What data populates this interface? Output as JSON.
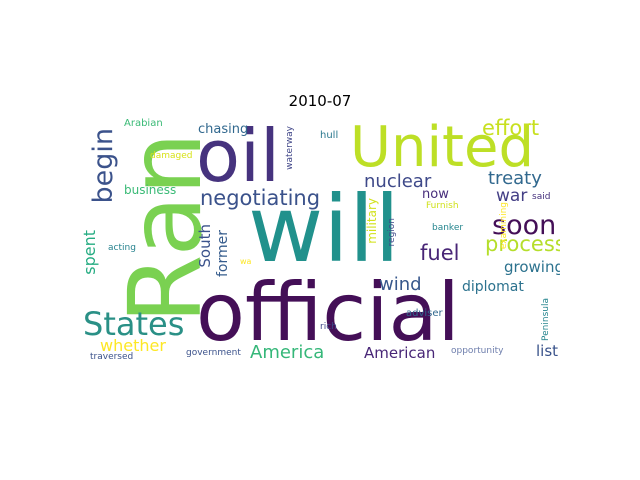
{
  "title": "2010-07",
  "words": [
    {
      "text": "will",
      "color": "#21918c"
    },
    {
      "text": "official",
      "color": "#440f57"
    },
    {
      "text": "Ran",
      "color": "#7ad151"
    },
    {
      "text": "United",
      "color": "#bddf26"
    },
    {
      "text": "oil",
      "color": "#46337e"
    },
    {
      "text": "States",
      "color": "#2a9086"
    },
    {
      "text": "soon",
      "color": "#440f57"
    },
    {
      "text": "begin",
      "color": "#3b528b"
    },
    {
      "text": "negotiating",
      "color": "#3b528b"
    },
    {
      "text": "effort",
      "color": "#c8e020"
    },
    {
      "text": "process",
      "color": "#b5de2b"
    },
    {
      "text": "America",
      "color": "#35b779"
    },
    {
      "text": "treaty",
      "color": "#31688e"
    },
    {
      "text": "nuclear",
      "color": "#3e4989"
    },
    {
      "text": "fuel",
      "color": "#482576"
    },
    {
      "text": "wind",
      "color": "#38588c"
    },
    {
      "text": "war",
      "color": "#433e85"
    },
    {
      "text": "growing",
      "color": "#2c728e"
    },
    {
      "text": "whether",
      "color": "#fde725"
    },
    {
      "text": "American",
      "color": "#482677"
    },
    {
      "text": "list",
      "color": "#3a538b"
    },
    {
      "text": "South",
      "color": "#3b528b"
    },
    {
      "text": "former",
      "color": "#365c8d"
    },
    {
      "text": "spent",
      "color": "#25ac82"
    },
    {
      "text": "chasing",
      "color": "#31688e"
    },
    {
      "text": "diplomat",
      "color": "#2c728e"
    },
    {
      "text": "business",
      "color": "#3aba76"
    },
    {
      "text": "military",
      "color": "#d2e21b"
    },
    {
      "text": "now",
      "color": "#472d7b"
    },
    {
      "text": "Arabian",
      "color": "#3aba76"
    },
    {
      "text": "damaged",
      "color": "#d8e219"
    },
    {
      "text": "hull",
      "color": "#2a788e"
    },
    {
      "text": "waterway",
      "color": "#404688"
    },
    {
      "text": "region",
      "color": "#3e4a89"
    },
    {
      "text": "said",
      "color": "#46327e"
    },
    {
      "text": "Furnish",
      "color": "#d0e11c"
    },
    {
      "text": "examining",
      "color": "#fde725"
    },
    {
      "text": "banker",
      "color": "#25858e"
    },
    {
      "text": "acting",
      "color": "#26828e"
    },
    {
      "text": "wa",
      "color": "#fde725"
    },
    {
      "text": "adviser",
      "color": "#31688e"
    },
    {
      "text": "rich",
      "color": "#3e4989"
    },
    {
      "text": "Peninsula",
      "color": "#25858e"
    },
    {
      "text": "government",
      "color": "#3b528b"
    },
    {
      "text": "traversed",
      "color": "#3b528b"
    },
    {
      "text": "opportunity",
      "color": "#6e7eac"
    }
  ]
}
